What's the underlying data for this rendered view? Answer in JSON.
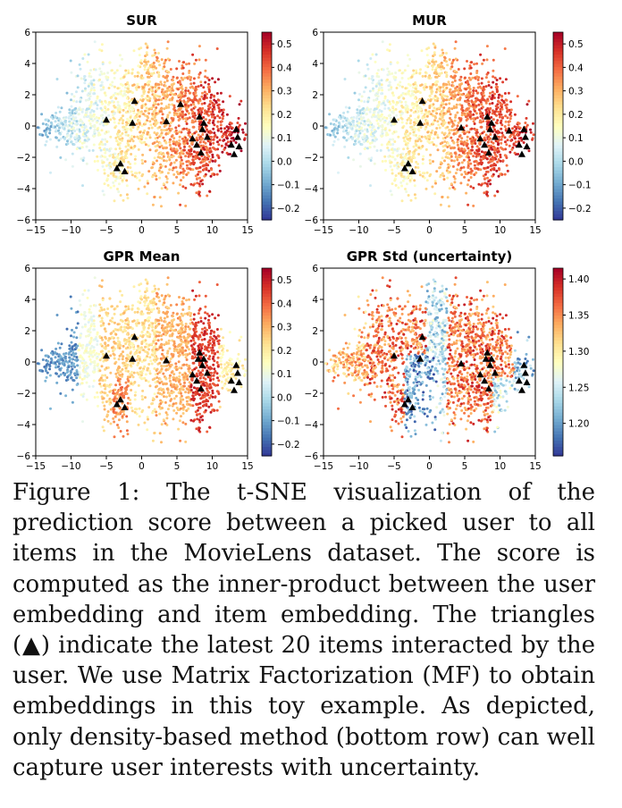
{
  "chart_data": [
    {
      "type": "scatter",
      "title": "SUR",
      "xlim": [
        -15,
        15
      ],
      "ylim": [
        -6,
        6
      ],
      "xticks": [
        "−15",
        "−10",
        "−5",
        "0",
        "5",
        "10",
        "15"
      ],
      "yticks": [
        "−6",
        "−4",
        "−2",
        "0",
        "2",
        "4",
        "6"
      ],
      "colorbar": {
        "colormap": "RdYlBu_r",
        "range": [
          -0.25,
          0.55
        ],
        "ticks": [
          "−0.2",
          "−0.1",
          "0.0",
          "0.1",
          "0.2",
          "0.3",
          "0.4",
          "0.5"
        ]
      },
      "triangles": [
        [
          -5,
          0.4
        ],
        [
          -1,
          1.6
        ],
        [
          -1.3,
          0.2
        ],
        [
          -3,
          -2.4
        ],
        [
          -2.4,
          -2.9
        ],
        [
          -3.5,
          -2.7
        ],
        [
          3.5,
          0.3
        ],
        [
          5.5,
          1.4
        ],
        [
          7.2,
          -0.8
        ],
        [
          8.2,
          0.6
        ],
        [
          8.6,
          -0.2
        ],
        [
          8.8,
          0.2
        ],
        [
          7.8,
          -1.2
        ],
        [
          8.4,
          -1.7
        ],
        [
          9.3,
          -0.7
        ],
        [
          12.7,
          -1.2
        ],
        [
          13.4,
          -0.2
        ],
        [
          13.6,
          -0.7
        ],
        [
          13.1,
          -1.8
        ],
        [
          13.8,
          -1.3
        ]
      ]
    },
    {
      "type": "scatter",
      "title": "MUR",
      "xlim": [
        -15,
        15
      ],
      "ylim": [
        -6,
        6
      ],
      "xticks": [
        "−15",
        "−10",
        "−5",
        "0",
        "5",
        "10",
        "15"
      ],
      "yticks": [
        "−6",
        "−4",
        "−2",
        "0",
        "2",
        "4",
        "6"
      ],
      "colorbar": {
        "colormap": "RdYlBu_r",
        "range": [
          -0.25,
          0.55
        ],
        "ticks": [
          "−0.2",
          "−0.1",
          "0.0",
          "0.1",
          "0.2",
          "0.3",
          "0.4",
          "0.5"
        ]
      },
      "triangles": [
        [
          -5,
          0.4
        ],
        [
          -1,
          1.6
        ],
        [
          -1.3,
          0.2
        ],
        [
          -3,
          -2.4
        ],
        [
          -2.4,
          -2.9
        ],
        [
          -3.5,
          -2.7
        ],
        [
          4.5,
          -0.1
        ],
        [
          7.2,
          -0.8
        ],
        [
          8.2,
          0.6
        ],
        [
          8.6,
          -0.2
        ],
        [
          8.8,
          0.2
        ],
        [
          7.8,
          -1.2
        ],
        [
          8.4,
          -1.7
        ],
        [
          9.3,
          -0.7
        ],
        [
          12.7,
          -1.2
        ],
        [
          13.4,
          -0.2
        ],
        [
          13.6,
          -0.7
        ],
        [
          13.1,
          -1.8
        ],
        [
          13.8,
          -1.3
        ],
        [
          11.3,
          -0.3
        ]
      ]
    },
    {
      "type": "scatter",
      "title": "GPR Mean",
      "xlim": [
        -15,
        15
      ],
      "ylim": [
        -6,
        6
      ],
      "xticks": [
        "−15",
        "−10",
        "−5",
        "0",
        "5",
        "10",
        "15"
      ],
      "yticks": [
        "−6",
        "−4",
        "−2",
        "0",
        "2",
        "4",
        "6"
      ],
      "colorbar": {
        "colormap": "RdYlBu_r",
        "range": [
          -0.25,
          0.55
        ],
        "ticks": [
          "−0.2",
          "−0.1",
          "0.0",
          "0.1",
          "0.2",
          "0.3",
          "0.4",
          "0.5"
        ]
      },
      "triangles": [
        [
          -5,
          0.4
        ],
        [
          -1,
          1.6
        ],
        [
          -1.3,
          0.2
        ],
        [
          -3,
          -2.4
        ],
        [
          -2.4,
          -2.9
        ],
        [
          -3.5,
          -2.7
        ],
        [
          3.5,
          0.1
        ],
        [
          7.2,
          -0.8
        ],
        [
          8.2,
          0.6
        ],
        [
          8.6,
          -0.2
        ],
        [
          8.8,
          0.2
        ],
        [
          7.8,
          -1.2
        ],
        [
          8.4,
          -1.7
        ],
        [
          9.3,
          -0.7
        ],
        [
          12.7,
          -1.2
        ],
        [
          13.4,
          -0.2
        ],
        [
          13.6,
          -0.7
        ],
        [
          13.1,
          -1.8
        ],
        [
          13.8,
          -1.3
        ],
        [
          8.0,
          0.2
        ]
      ]
    },
    {
      "type": "scatter",
      "title": "GPR Std (uncertainty)",
      "xlim": [
        -15,
        15
      ],
      "ylim": [
        -6,
        6
      ],
      "xticks": [
        "−15",
        "−10",
        "−5",
        "0",
        "5",
        "10",
        "15"
      ],
      "yticks": [
        "−6",
        "−4",
        "−2",
        "0",
        "2",
        "4",
        "6"
      ],
      "colorbar": {
        "colormap": "RdYlBu_r",
        "range": [
          1.155,
          1.415
        ],
        "ticks": [
          "1.20",
          "1.25",
          "1.30",
          "1.35",
          "1.40"
        ]
      },
      "triangles": [
        [
          -5,
          0.4
        ],
        [
          -1,
          1.6
        ],
        [
          -1.3,
          0.2
        ],
        [
          -3,
          -2.4
        ],
        [
          -2.4,
          -2.9
        ],
        [
          -3.5,
          -2.7
        ],
        [
          4.5,
          -0.1
        ],
        [
          7.2,
          -0.8
        ],
        [
          8.2,
          0.6
        ],
        [
          8.6,
          -0.2
        ],
        [
          8.8,
          0.2
        ],
        [
          7.8,
          -1.2
        ],
        [
          8.4,
          -1.7
        ],
        [
          9.3,
          -0.7
        ],
        [
          12.7,
          -1.2
        ],
        [
          13.4,
          -0.2
        ],
        [
          13.6,
          -0.7
        ],
        [
          13.1,
          -1.8
        ],
        [
          13.8,
          -1.3
        ],
        [
          8.0,
          0.2
        ]
      ]
    }
  ],
  "caption": "Figure 1: The t-SNE visualization of the prediction score between a picked user to all items in the MovieLens dataset. The score is computed as the inner-product between the user embedding and item embedding. The triangles (▲) indicate the latest 20 items interacted by the user. We use Matrix Factorization (MF) to obtain embeddings in this toy example. As depicted, only density-based method (bottom row) can well capture user interests with uncertainty."
}
